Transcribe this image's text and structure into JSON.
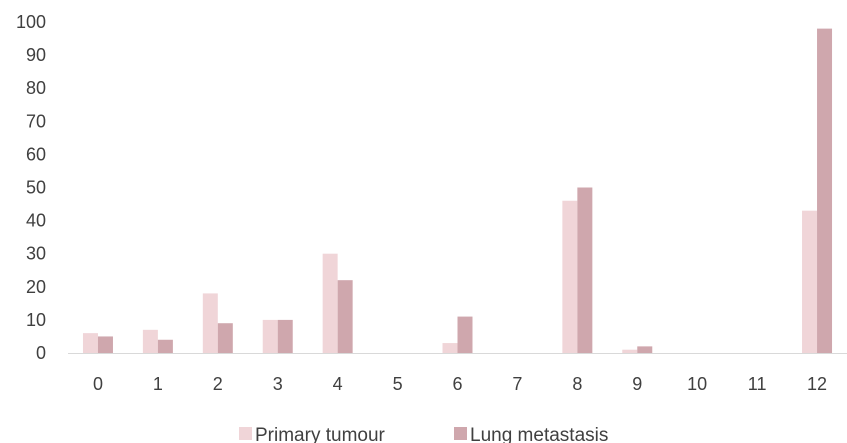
{
  "chart_data": {
    "type": "bar",
    "categories": [
      "0",
      "1",
      "2",
      "3",
      "4",
      "5",
      "6",
      "7",
      "8",
      "9",
      "10",
      "11",
      "12"
    ],
    "series": [
      {
        "name": "Primary tumour",
        "color": "#f0d5d8",
        "values": [
          6,
          7,
          18,
          10,
          30,
          0,
          3,
          0,
          46,
          1,
          0,
          0,
          43
        ]
      },
      {
        "name": "Lung metastasis",
        "color": "#cfa7ad",
        "values": [
          5,
          4,
          9,
          10,
          22,
          0,
          11,
          0,
          50,
          2,
          0,
          0,
          98
        ]
      }
    ],
    "ylim": [
      0,
      100
    ],
    "yticks": [
      0,
      10,
      20,
      30,
      40,
      50,
      60,
      70,
      80,
      90,
      100
    ],
    "grid": false,
    "legend_position": "bottom-center"
  }
}
